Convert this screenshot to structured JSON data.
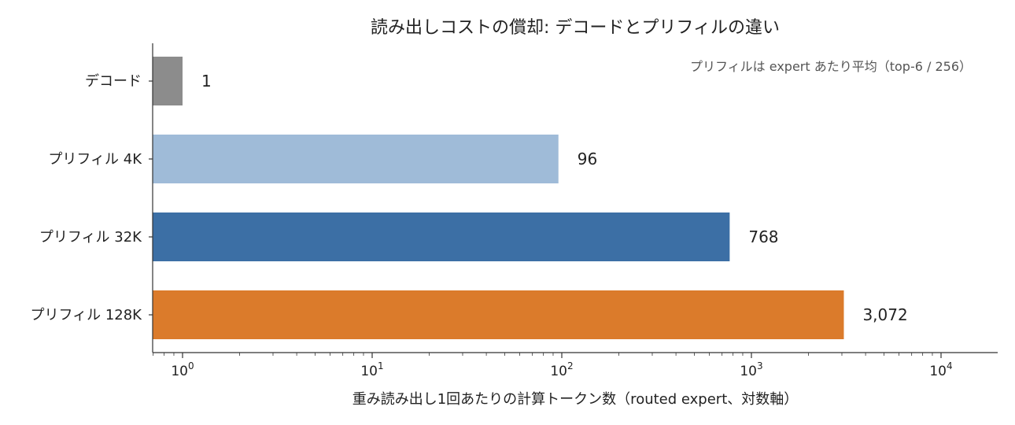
{
  "chart_data": {
    "type": "bar",
    "orientation": "horizontal",
    "title": "読み出しコストの償却: デコードとプリフィルの違い",
    "annotation": "プリフィルは expert あたり平均（top-6 / 256）",
    "xlabel": "重み読み出し1回あたりの計算トークン数（routed expert、対数軸）",
    "ylabel": "",
    "x_scale": "log",
    "xlim": [
      0.7,
      20000
    ],
    "x_ticks": [
      {
        "value": 1,
        "base": "10",
        "exp": "0"
      },
      {
        "value": 10,
        "base": "10",
        "exp": "1"
      },
      {
        "value": 100,
        "base": "10",
        "exp": "2"
      },
      {
        "value": 1000,
        "base": "10",
        "exp": "3"
      },
      {
        "value": 10000,
        "base": "10",
        "exp": "4"
      }
    ],
    "grid": false,
    "categories": [
      "デコード",
      "プリフィル 4K",
      "プリフィル 32K",
      "プリフィル 128K"
    ],
    "values": [
      1,
      96,
      768,
      3072
    ],
    "value_labels": [
      "1",
      "96",
      "768",
      "3,072"
    ],
    "colors": [
      "#8c8c8c",
      "#9fbbd8",
      "#3c6fa5",
      "#db7b2b"
    ]
  }
}
